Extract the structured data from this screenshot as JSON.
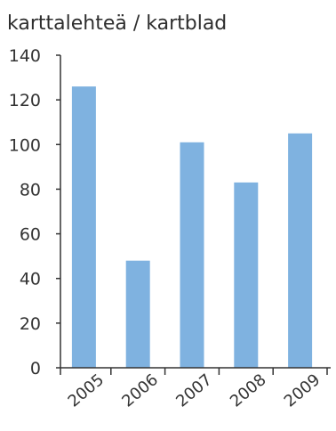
{
  "chart_data": {
    "type": "bar",
    "title": "karttalehteä / kartblad",
    "categories": [
      "2005",
      "2006",
      "2007",
      "2008",
      "2009"
    ],
    "values": [
      126,
      48,
      101,
      83,
      105
    ],
    "ylim": [
      0,
      140
    ],
    "yticks": [
      0,
      20,
      40,
      60,
      80,
      100,
      120,
      140
    ],
    "xlabel": "",
    "ylabel": "",
    "grid": false,
    "bar_color": "#7fb2e0",
    "axis_color": "#333333"
  }
}
